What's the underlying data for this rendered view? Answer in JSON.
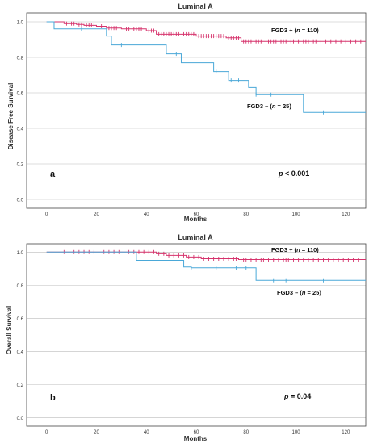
{
  "colors": {
    "pos": "#d6336c",
    "neg": "#4aa8d8",
    "grid": "#bcbcbc",
    "axis": "#444444"
  },
  "chart_data": [
    {
      "type": "line",
      "panel_label": "a",
      "title": "Luminal A",
      "xlabel": "Months",
      "ylabel": "Disease Free Survival",
      "xlim": [
        -8,
        128
      ],
      "ylim": [
        -0.05,
        1.05
      ],
      "xticks": [
        0,
        20,
        40,
        60,
        80,
        100,
        120
      ],
      "yticks": [
        0.0,
        0.2,
        0.4,
        0.6,
        0.8,
        1.0
      ],
      "grid": "horizontal",
      "annotation": {
        "prefix": "p",
        "text": " < 0.001"
      },
      "series": [
        {
          "name": "FGD3 + (n = 110)",
          "name_prefix": "FGD3 + (",
          "name_italic": "n",
          "name_suffix": " = 110)",
          "color_key": "pos",
          "steps": [
            [
              0,
              1.0
            ],
            [
              7,
              0.99
            ],
            [
              12,
              0.985
            ],
            [
              15,
              0.98
            ],
            [
              20,
              0.975
            ],
            [
              24,
              0.965
            ],
            [
              30,
              0.96
            ],
            [
              40,
              0.95
            ],
            [
              44,
              0.93
            ],
            [
              60,
              0.92
            ],
            [
              72,
              0.91
            ],
            [
              78,
              0.89
            ],
            [
              128,
              0.89
            ]
          ],
          "censor_x": [
            8,
            9,
            10,
            11,
            13,
            14,
            16,
            17,
            18,
            19,
            21,
            22,
            25,
            26,
            27,
            28,
            31,
            32,
            33,
            35,
            36,
            37,
            38,
            41,
            42,
            43,
            45,
            46,
            47,
            48,
            49,
            50,
            51,
            52,
            53,
            55,
            56,
            57,
            58,
            59,
            61,
            62,
            63,
            64,
            65,
            66,
            67,
            68,
            69,
            70,
            71,
            73,
            74,
            75,
            76,
            77,
            79,
            80,
            81,
            82,
            84,
            85,
            86,
            88,
            89,
            90,
            91,
            92,
            94,
            95,
            96,
            98,
            99,
            100,
            101,
            103,
            104,
            105,
            107,
            108,
            110,
            112,
            114,
            116,
            118,
            120,
            122,
            124,
            126
          ]
        },
        {
          "name": "FGD3 – (n = 25)",
          "name_prefix": "FGD3 – (",
          "name_italic": "n",
          "name_suffix": " = 25)",
          "color_key": "neg",
          "steps": [
            [
              0,
              1.0
            ],
            [
              3,
              0.96
            ],
            [
              24,
              0.92
            ],
            [
              26,
              0.87
            ],
            [
              48,
              0.82
            ],
            [
              54,
              0.77
            ],
            [
              67,
              0.72
            ],
            [
              73,
              0.67
            ],
            [
              81,
              0.63
            ],
            [
              84,
              0.59
            ],
            [
              103,
              0.49
            ],
            [
              128,
              0.49
            ]
          ],
          "censor_x": [
            14,
            30,
            52,
            68,
            74,
            77,
            84,
            90,
            111
          ]
        }
      ]
    },
    {
      "type": "line",
      "panel_label": "b",
      "title": "Luminal A",
      "xlabel": "Months",
      "ylabel": "Overall Survival",
      "xlim": [
        -8,
        128
      ],
      "ylim": [
        -0.05,
        1.05
      ],
      "xticks": [
        0,
        20,
        40,
        60,
        80,
        100,
        120
      ],
      "yticks": [
        0.0,
        0.2,
        0.4,
        0.6,
        0.8,
        1.0
      ],
      "grid": "horizontal",
      "annotation": {
        "prefix": "p",
        "text": " = 0.04"
      },
      "series": [
        {
          "name": "FGD3 + (n = 110)",
          "name_prefix": "FGD3 + (",
          "name_italic": "n",
          "name_suffix": " = 110)",
          "color_key": "pos",
          "steps": [
            [
              0,
              1.0
            ],
            [
              44,
              0.99
            ],
            [
              48,
              0.98
            ],
            [
              56,
              0.97
            ],
            [
              62,
              0.96
            ],
            [
              77,
              0.955
            ],
            [
              128,
              0.955
            ]
          ],
          "censor_x": [
            7,
            9,
            11,
            13,
            15,
            17,
            19,
            21,
            23,
            25,
            27,
            29,
            31,
            33,
            35,
            37,
            39,
            41,
            43,
            45,
            47,
            49,
            51,
            53,
            55,
            57,
            59,
            61,
            63,
            65,
            67,
            69,
            71,
            73,
            75,
            76,
            78,
            79,
            80,
            82,
            84,
            86,
            87,
            88,
            89,
            91,
            93,
            95,
            96,
            97,
            99,
            101,
            103,
            105,
            107,
            109,
            111,
            113,
            115,
            117,
            119,
            121,
            123,
            125
          ]
        },
        {
          "name": "FGD3 – (n = 25)",
          "name_prefix": "FGD3 – (",
          "name_italic": "n",
          "name_suffix": " = 25)",
          "color_key": "neg",
          "steps": [
            [
              0,
              1.0
            ],
            [
              36,
              0.95
            ],
            [
              55,
              0.91
            ],
            [
              58,
              0.905
            ],
            [
              84,
              0.83
            ],
            [
              128,
              0.83
            ]
          ],
          "censor_x": [
            58,
            68,
            76,
            80,
            88,
            91,
            96,
            111
          ]
        }
      ]
    }
  ]
}
